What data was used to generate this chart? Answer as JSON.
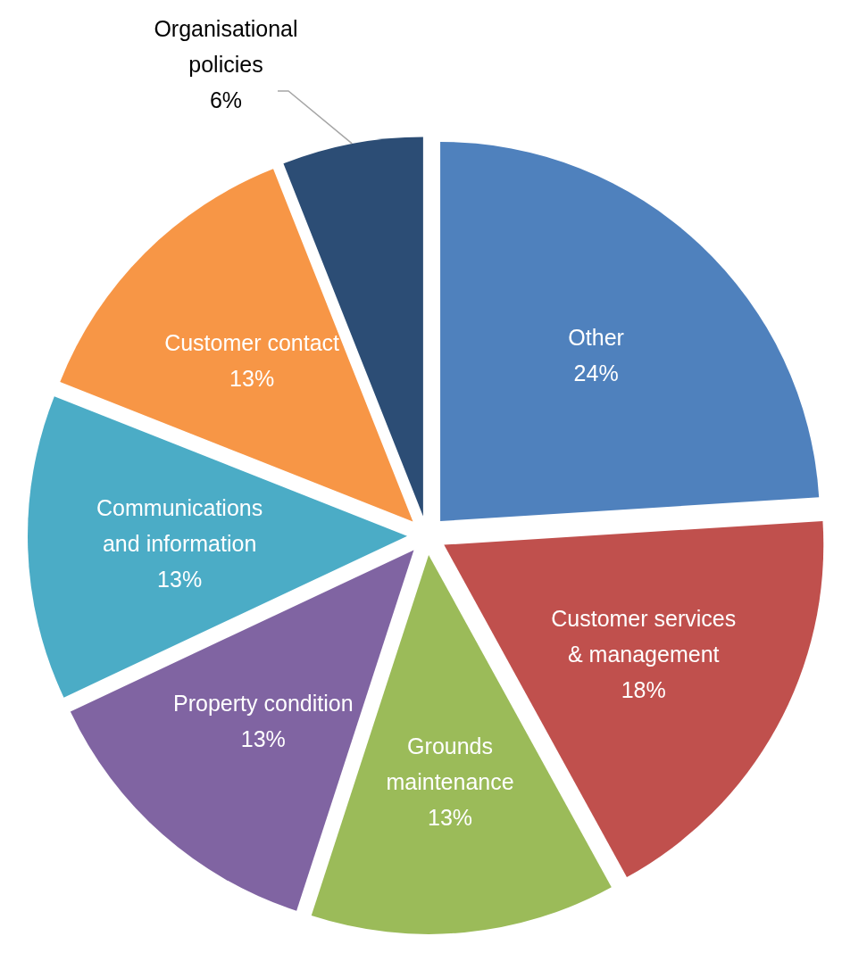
{
  "chart_data": {
    "type": "pie",
    "categories": [
      "Other",
      "Customer services & management",
      "Grounds maintenance",
      "Property condition",
      "Communications and information",
      "Customer contact",
      "Organisational policies"
    ],
    "values": [
      24,
      18,
      13,
      13,
      13,
      13,
      6
    ],
    "colors": [
      "#4f81bd",
      "#c0504d",
      "#9bbb59",
      "#8064a2",
      "#4bacc6",
      "#f79646",
      "#2c4d75"
    ],
    "value_labels": [
      "24%",
      "18%",
      "13%",
      "13%",
      "13%",
      "13%",
      "6%"
    ]
  }
}
